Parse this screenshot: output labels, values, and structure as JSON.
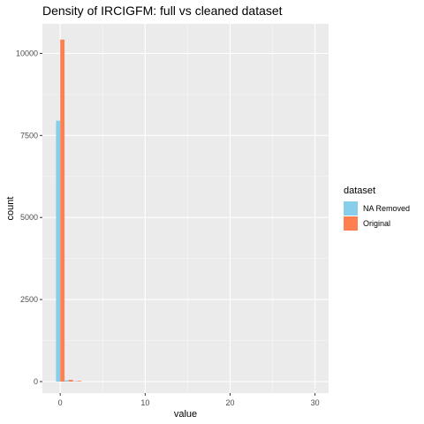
{
  "chart_data": {
    "type": "bar",
    "title": "Density of IRCIGFM: full vs cleaned dataset",
    "xlabel": "value",
    "ylabel": "count",
    "xlim": [
      -2.1,
      31.6
    ],
    "ylim": [
      -350,
      10900
    ],
    "x_ticks": [
      0,
      10,
      20,
      30
    ],
    "y_ticks": [
      0,
      2500,
      5000,
      7500,
      10000
    ],
    "grid": true,
    "legend_position": "right",
    "legend_title": "dataset",
    "bin_width": 1,
    "series": [
      {
        "name": "NA Removed",
        "color": "#87CEEB",
        "bins": [
          {
            "x": 0,
            "count": 7950
          },
          {
            "x": 1,
            "count": 40
          },
          {
            "x": 2,
            "count": 12
          }
        ]
      },
      {
        "name": "Original",
        "color": "#FF7F50",
        "bins": [
          {
            "x": 0,
            "count": 10420
          },
          {
            "x": 1,
            "count": 55
          },
          {
            "x": 2,
            "count": 18
          }
        ]
      }
    ]
  }
}
